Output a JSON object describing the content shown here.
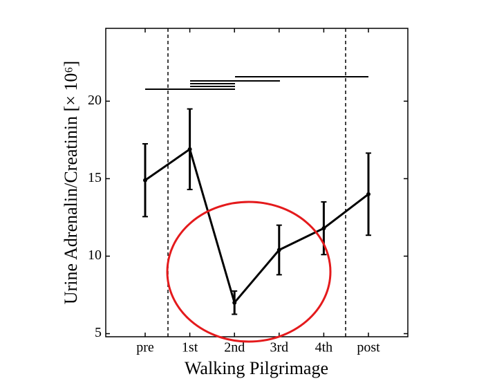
{
  "chart_data": {
    "type": "line",
    "x_label": "Walking Pilgrimage",
    "y_label": "Urine Adrenalin/Creatinin [× 10⁶]",
    "categories": [
      "pre",
      "1st",
      "2nd",
      "3rd",
      "4th",
      "post"
    ],
    "series": [
      {
        "color": "#000000",
        "values": [
          14.9,
          16.9,
          7.0,
          10.4,
          11.8,
          14.0
        ],
        "errors": [
          2.35,
          2.6,
          0.75,
          1.6,
          1.7,
          2.65
        ]
      }
    ],
    "ylim": [
      4.8,
      24.7
    ],
    "yticks": [
      5,
      10,
      15,
      20
    ]
  }
}
